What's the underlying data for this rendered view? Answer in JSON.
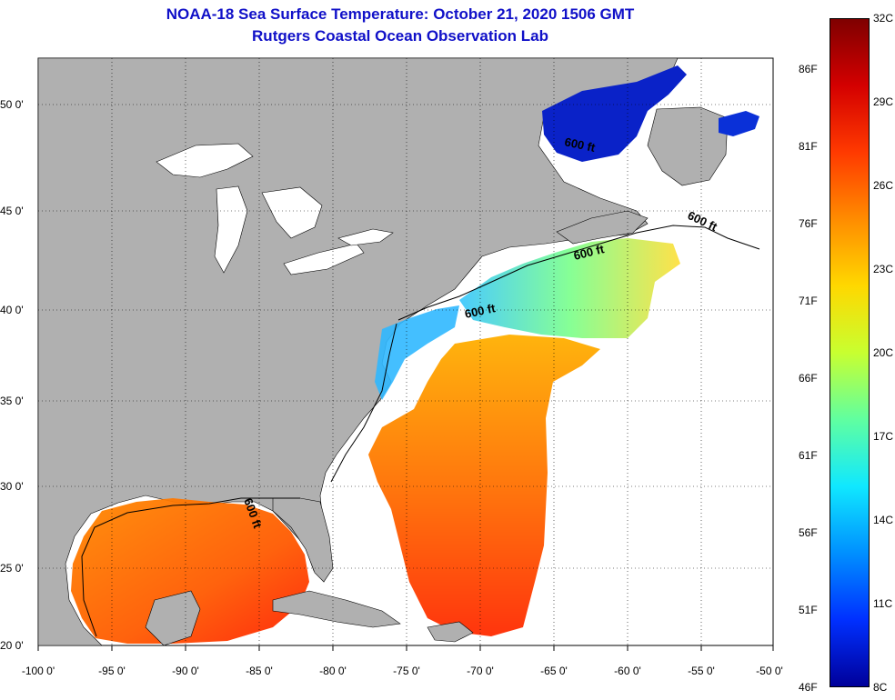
{
  "header": {
    "title": "NOAA-18 Sea Surface Temperature:  October 21, 2020 1506 GMT",
    "subtitle": "Rutgers Coastal Ocean Observation Lab"
  },
  "axes": {
    "lat_labels": [
      "50 0'",
      "45 0'",
      "40 0'",
      "35 0'",
      "30 0'",
      "25 0'",
      "20 0'"
    ],
    "lon_labels": [
      "-100 0'",
      "-95 0'",
      "-90 0'",
      "-85 0'",
      "-80 0'",
      "-75 0'",
      "-70 0'",
      "-65 0'",
      "-60 0'",
      "-55 0'",
      "-50 0'"
    ]
  },
  "isobath_label": "600 ft",
  "colorbar": {
    "celsius": [
      "32C",
      "29C",
      "26C",
      "23C",
      "20C",
      "17C",
      "14C",
      "11C",
      "8C"
    ],
    "fahrenheit": [
      "86F",
      "81F",
      "76F",
      "71F",
      "66F",
      "61F",
      "56F",
      "51F",
      "46F"
    ],
    "range_c": [
      8,
      32
    ],
    "colors": [
      "#7f0000",
      "#d40000",
      "#ff3a00",
      "#ff8c00",
      "#ffd800",
      "#c8ff30",
      "#60ffa0",
      "#10e8ff",
      "#0090ff",
      "#0030ff",
      "#00009a"
    ]
  },
  "colors": {
    "land": "#b0b0b0",
    "ocean": "#ffffff",
    "title": "#1010c8"
  }
}
